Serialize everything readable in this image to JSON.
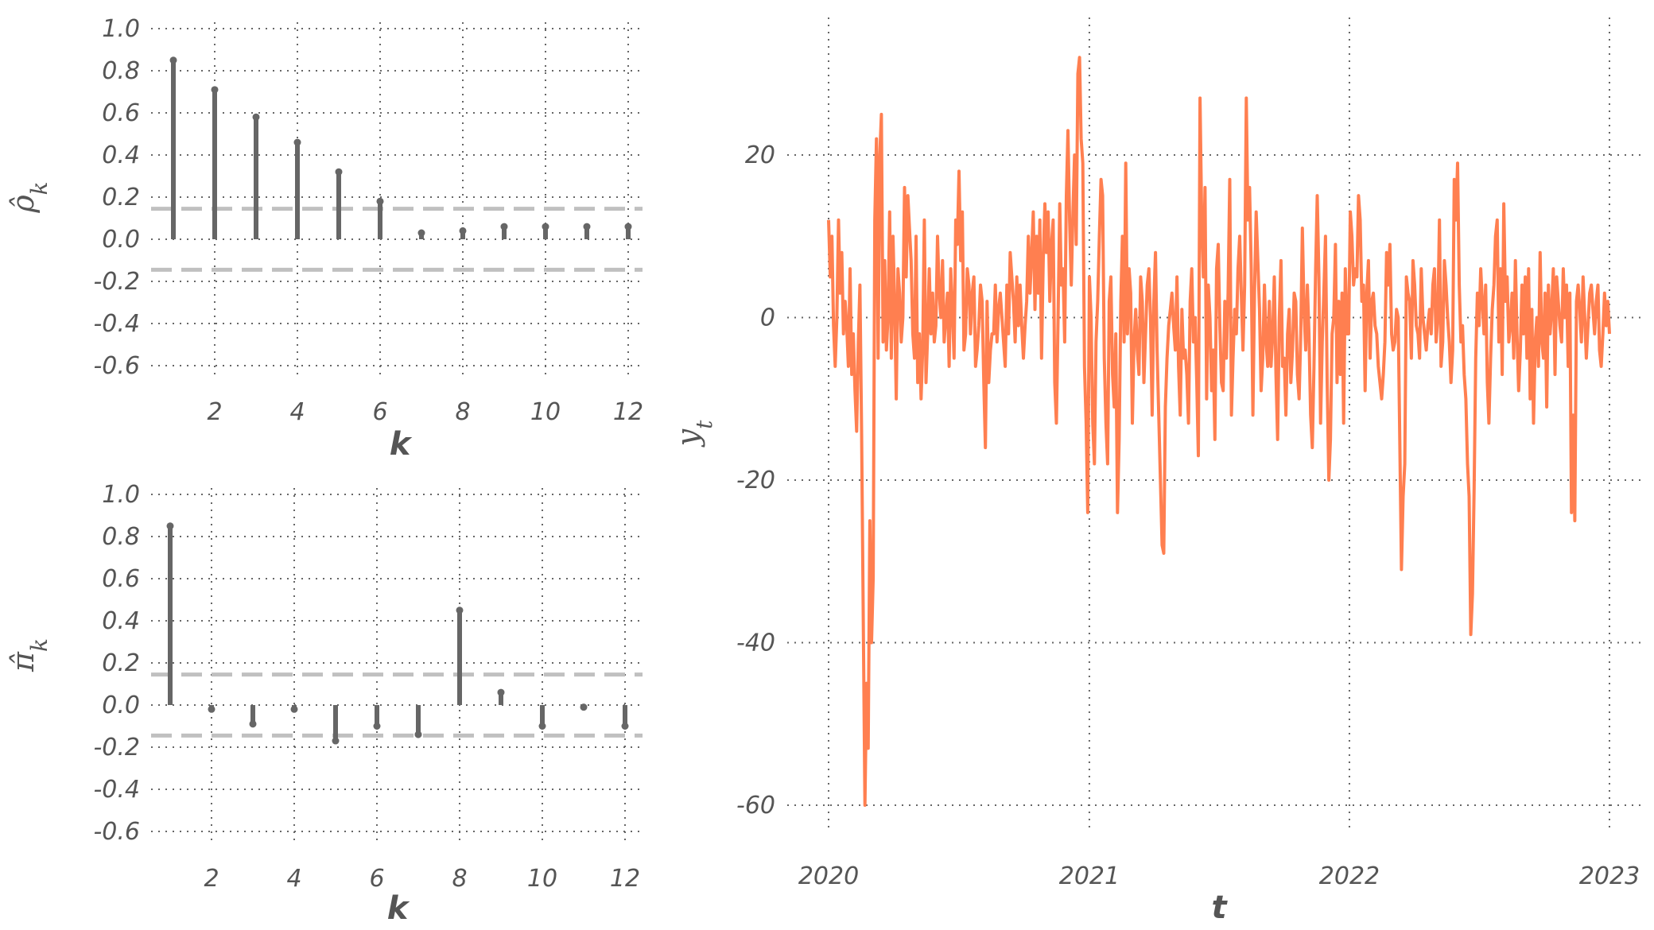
{
  "chart_data": [
    {
      "type": "stem",
      "panel": "acf",
      "xlabel": "k",
      "ylabel": "ρ̂_k",
      "x": [
        1,
        2,
        3,
        4,
        5,
        6,
        7,
        8,
        9,
        10,
        11,
        12
      ],
      "values": [
        0.85,
        0.71,
        0.58,
        0.46,
        0.32,
        0.18,
        0.03,
        0.04,
        0.06,
        0.06,
        0.06,
        0.06
      ],
      "confidence_band": [
        -0.145,
        0.145
      ],
      "xticks": [
        "2",
        "4",
        "6",
        "8",
        "10",
        "12"
      ],
      "yticks": [
        "1.0",
        "0.8",
        "0.6",
        "0.4",
        "0.2",
        "0.0",
        "-0.2",
        "-0.4",
        "-0.6"
      ],
      "ylim": [
        -0.6,
        1.0
      ],
      "grid": true,
      "colors": {
        "stem": "#666666",
        "band": "#c0c0c0"
      }
    },
    {
      "type": "stem",
      "panel": "pacf",
      "xlabel": "k",
      "ylabel": "π̂_k",
      "x": [
        1,
        2,
        3,
        4,
        5,
        6,
        7,
        8,
        9,
        10,
        11,
        12
      ],
      "values": [
        0.85,
        -0.02,
        -0.09,
        -0.02,
        -0.17,
        -0.1,
        -0.14,
        0.45,
        0.06,
        -0.1,
        -0.01,
        -0.1
      ],
      "confidence_band": [
        -0.145,
        0.145
      ],
      "xticks": [
        "2",
        "4",
        "6",
        "8",
        "10",
        "12"
      ],
      "yticks": [
        "1.0",
        "0.8",
        "0.6",
        "0.4",
        "0.2",
        "0.0",
        "-0.2",
        "-0.4",
        "-0.6"
      ],
      "ylim": [
        -0.6,
        1.0
      ],
      "grid": true,
      "colors": {
        "stem": "#666666",
        "band": "#c0c0c0"
      }
    },
    {
      "type": "line",
      "panel": "series",
      "xlabel": "t",
      "ylabel": "y_t",
      "xticks": [
        "2020",
        "2021",
        "2022",
        "2023"
      ],
      "yticks": [
        "20",
        "0",
        "-20",
        "-40",
        "-60"
      ],
      "xlim": [
        "2020-01-01",
        "2023-01-01"
      ],
      "ylim": [
        -60,
        20
      ],
      "grid": true,
      "colors": {
        "line": "#ff7f50"
      },
      "x_start": "2020-01-01",
      "x_end": "2023-01-01",
      "values": [
        12,
        5,
        10,
        -1,
        -6,
        0,
        12,
        3,
        8,
        -2,
        2,
        -1,
        -6,
        6,
        -7,
        -2,
        -9,
        -14,
        -3,
        4,
        -14,
        -37,
        -60,
        -45,
        -53,
        -25,
        -40,
        -32,
        12,
        22,
        -5,
        20,
        25,
        -3,
        7,
        -4,
        0,
        13,
        -5,
        10,
        2,
        -10,
        6,
        3,
        -3,
        0,
        16,
        5,
        15,
        11,
        7,
        -2,
        -5,
        10,
        -8,
        -2,
        -10,
        -4,
        12,
        -8,
        -2,
        6,
        -2,
        3,
        -3,
        -1,
        10,
        3,
        0,
        7,
        -3,
        0,
        3,
        -6,
        6,
        1,
        -5,
        12,
        9,
        18,
        7,
        13,
        -4,
        -2,
        6,
        4,
        -2,
        3,
        5,
        -6,
        -4,
        -1,
        4,
        2,
        -8,
        -16,
        2,
        -8,
        -4,
        -2,
        -2,
        4,
        -3,
        1,
        3,
        0,
        -3,
        -6,
        4,
        -2,
        8,
        5,
        2,
        -3,
        5,
        -1,
        4,
        -1,
        -5,
        -1,
        2,
        10,
        3,
        8,
        13,
        1,
        10,
        3,
        12,
        -5,
        7,
        14,
        8,
        13,
        2,
        9,
        12,
        -8,
        -13,
        0,
        14,
        4,
        6,
        -3,
        15,
        23,
        12,
        4,
        13,
        20,
        9,
        30,
        32,
        22,
        19,
        -6,
        -13,
        -24,
        5,
        0,
        -13,
        -18,
        -3,
        2,
        10,
        17,
        15,
        -5,
        -13,
        -18,
        2,
        5,
        -7,
        -11,
        -2,
        -24,
        -15,
        2,
        10,
        -3,
        19,
        -2,
        6,
        3,
        -13,
        -3,
        1,
        -4,
        -7,
        5,
        2,
        -8,
        -2,
        4,
        6,
        0,
        -12,
        2,
        8,
        -4,
        -12,
        -20,
        -28,
        -29,
        -11,
        -5,
        -1,
        1,
        3,
        -1,
        -4,
        5,
        -6,
        -12,
        1,
        -5,
        -4,
        -7,
        -13,
        2,
        6,
        -3,
        0,
        -8,
        -17,
        27,
        12,
        5,
        16,
        -10,
        4,
        0,
        -9,
        -4,
        -15,
        6,
        9,
        -1,
        -8,
        -9,
        2,
        -5,
        3,
        17,
        -12,
        -5,
        1,
        -2,
        6,
        10,
        3,
        -4,
        4,
        27,
        12,
        16,
        6,
        -12,
        3,
        13,
        7,
        1,
        -9,
        -5,
        4,
        -3,
        -6,
        2,
        -6,
        -2,
        5,
        -7,
        -15,
        0,
        7,
        -6,
        -5,
        -12,
        -2,
        1,
        -8,
        -4,
        3,
        2,
        -7,
        -10,
        -2,
        11,
        1,
        -4,
        4,
        -2,
        -12,
        -16,
        -6,
        6,
        15,
        5,
        -13,
        -3,
        3,
        10,
        -8,
        -20,
        -15,
        -2,
        0,
        9,
        -8,
        2,
        -7,
        3,
        -13,
        6,
        -2,
        -2,
        13,
        10,
        4,
        6,
        5,
        15,
        12,
        2,
        4,
        -9,
        3,
        7,
        -5,
        2,
        3,
        -1,
        -2,
        -6,
        -8,
        -10,
        -7,
        -3,
        8,
        4,
        9,
        -2,
        -4,
        -3,
        1,
        0,
        -15,
        -31,
        -22,
        -18,
        5,
        3,
        2,
        -5,
        7,
        4,
        -1,
        -2,
        -5,
        6,
        0,
        -2,
        -4,
        -1,
        1,
        -2,
        4,
        6,
        -3,
        0,
        12,
        -6,
        -3,
        7,
        4,
        0,
        -3,
        -8,
        -4,
        17,
        12,
        19,
        4,
        -3,
        -1,
        -7,
        -10,
        -18,
        -22,
        -39,
        -34,
        -21,
        -5,
        3,
        -1,
        6,
        2,
        -2,
        4,
        -8,
        -13,
        -5,
        1,
        4,
        10,
        12,
        -3,
        6,
        -7,
        14,
        2,
        5,
        -3,
        -1,
        3,
        -5,
        7,
        -2,
        -9,
        -4,
        4,
        -2,
        5,
        -5,
        6,
        -10,
        1,
        -13,
        -3,
        0,
        -6,
        8,
        -3,
        -5,
        3,
        -11,
        4,
        -2,
        1,
        6,
        -7,
        5,
        2,
        -1,
        -3,
        6,
        0,
        4,
        -6,
        3,
        -24,
        -12,
        -25,
        2,
        4,
        1,
        -3,
        5,
        0,
        -5,
        -1,
        3,
        4,
        1,
        -2,
        2,
        4,
        -4,
        -6,
        -2,
        3,
        -1,
        2,
        -2
      ]
    }
  ]
}
